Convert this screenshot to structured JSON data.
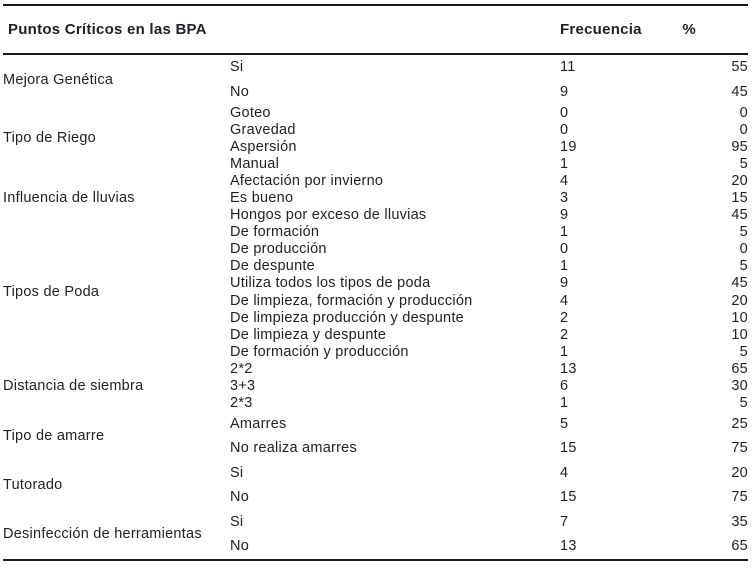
{
  "page": {
    "background": "#ffffff",
    "text_color": "#21212b",
    "rule_color": "#1b1b1b"
  },
  "table": {
    "header": {
      "title": "Puntos Críticos en las BPA",
      "frecuencia": "Frecuencia",
      "percent": "%"
    },
    "groups": [
      {
        "category": "Mejora Genética",
        "row_size": "tall",
        "rows": [
          [
            "Si",
            11,
            55
          ],
          [
            "No",
            9,
            45
          ]
        ]
      },
      {
        "category": "Tipo de Riego",
        "row_size": "tight",
        "rows": [
          [
            "Goteo",
            0,
            0
          ],
          [
            "Gravedad",
            0,
            0
          ],
          [
            "Aspersión",
            19,
            95
          ],
          [
            "Manual",
            1,
            5
          ]
        ]
      },
      {
        "category": "Influencia de lluvias",
        "row_size": "tight",
        "rows": [
          [
            "Afectación por invierno",
            4,
            20
          ],
          [
            "Es bueno",
            3,
            15
          ],
          [
            "Hongos por exceso de lluvias",
            9,
            45
          ]
        ]
      },
      {
        "category": "Tipos de Poda",
        "row_size": "tight",
        "rows": [
          [
            "De formación",
            1,
            5
          ],
          [
            "De producción",
            0,
            0
          ],
          [
            "De despunte",
            1,
            5
          ],
          [
            "Utiliza todos los tipos de poda",
            9,
            45
          ],
          [
            "De limpieza, formación y producción",
            4,
            20
          ],
          [
            "De limpieza producción y despunte",
            2,
            10
          ],
          [
            "De limpieza y despunte",
            2,
            10
          ],
          [
            "De formación y producción",
            1,
            5
          ]
        ]
      },
      {
        "category": "Distancia de siembra",
        "row_size": "tight",
        "rows": [
          [
            "2*2",
            13,
            65
          ],
          [
            "3+3",
            6,
            30
          ],
          [
            "2*3",
            1,
            5
          ]
        ]
      },
      {
        "category": "Tipo de amarre",
        "row_size": "tall",
        "rows": [
          [
            "Amarres",
            5,
            25
          ],
          [
            "No realiza amarres",
            15,
            75
          ]
        ]
      },
      {
        "category": "Tutorado",
        "row_size": "tall",
        "rows": [
          [
            "Si",
            4,
            20
          ],
          [
            "No",
            15,
            75
          ]
        ]
      },
      {
        "category": "Desinfección de herramientas",
        "row_size": "tall",
        "rows": [
          [
            "Si",
            7,
            35
          ],
          [
            "No",
            13,
            65
          ]
        ]
      }
    ]
  }
}
